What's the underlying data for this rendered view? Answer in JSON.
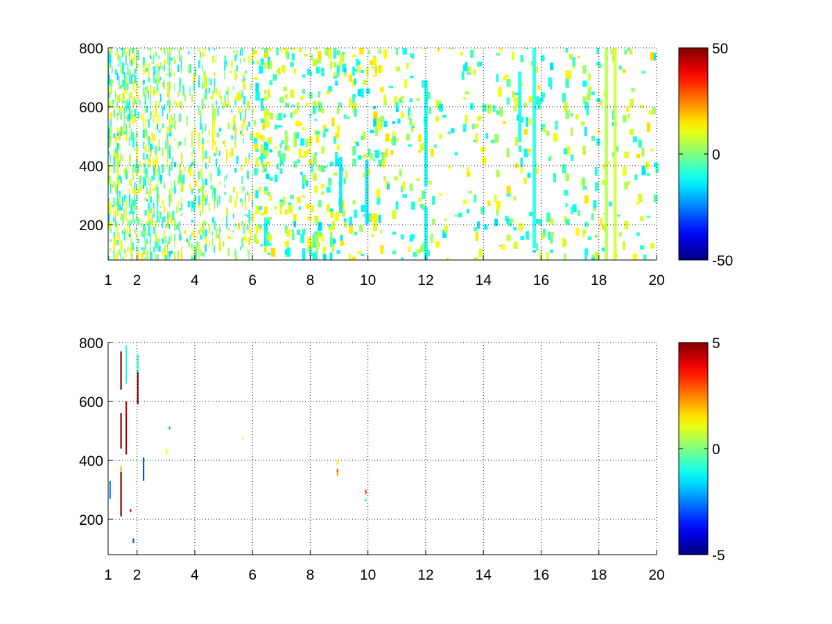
{
  "chart_data": [
    {
      "type": "heatmap",
      "title": "",
      "xlabel": "",
      "ylabel": "",
      "xlim": [
        1,
        20
      ],
      "ylim": [
        80,
        800
      ],
      "xticks": [
        "1",
        "2",
        "4",
        "6",
        "8",
        "10",
        "12",
        "14",
        "16",
        "18",
        "20"
      ],
      "yticks": [
        "200",
        "400",
        "600",
        "800"
      ],
      "grid": true,
      "colormap": "jet",
      "colorbar": {
        "min": -50,
        "max": 50,
        "ticks": [
          "50",
          "0",
          "-50"
        ]
      },
      "description_values": {
        "cell_width_x": 0.13,
        "cell_height_y": 18,
        "value_range": [
          -18,
          18
        ],
        "density_by_x": [
          [
            1,
            0.9
          ],
          [
            2,
            0.75
          ],
          [
            4,
            0.6
          ],
          [
            6,
            0.45
          ],
          [
            8,
            0.32
          ],
          [
            10,
            0.22
          ],
          [
            12,
            0.18
          ],
          [
            14,
            0.15
          ],
          [
            16,
            0.14
          ],
          [
            18,
            0.14
          ],
          [
            20,
            0.12
          ]
        ],
        "columns": [
          {
            "x": 9.0,
            "y0": 240,
            "y1": 430,
            "value": -15
          },
          {
            "x": 9.9,
            "y0": 200,
            "y1": 420,
            "value": -15
          },
          {
            "x": 11.95,
            "y0": 80,
            "y1": 260,
            "value": -13
          },
          {
            "x": 11.95,
            "y0": 330,
            "y1": 690,
            "value": -13
          },
          {
            "x": 15.2,
            "y0": 480,
            "y1": 720,
            "value": -12
          },
          {
            "x": 15.7,
            "y0": 120,
            "y1": 800,
            "value": -10
          },
          {
            "x": 18.2,
            "y0": 80,
            "y1": 800,
            "value": 5
          },
          {
            "x": 18.5,
            "y0": 80,
            "y1": 800,
            "value": 8
          }
        ]
      }
    },
    {
      "type": "heatmap",
      "title": "",
      "xlabel": "",
      "ylabel": "",
      "xlim": [
        1,
        20
      ],
      "ylim": [
        80,
        800
      ],
      "xticks": [
        "1",
        "2",
        "4",
        "6",
        "8",
        "10",
        "12",
        "14",
        "16",
        "18",
        "20"
      ],
      "yticks": [
        "200",
        "400",
        "600",
        "800"
      ],
      "grid": true,
      "colormap": "jet",
      "colorbar": {
        "min": -5,
        "max": 5,
        "ticks": [
          "5",
          "0",
          "-5"
        ]
      },
      "strips": [
        {
          "x": 1.04,
          "y0": 270,
          "y1": 330,
          "value": -2.5
        },
        {
          "x": 1.42,
          "y0": 210,
          "y1": 360,
          "value": 5
        },
        {
          "x": 1.42,
          "y0": 360,
          "y1": 380,
          "value": 2
        },
        {
          "x": 1.42,
          "y0": 440,
          "y1": 560,
          "value": 5
        },
        {
          "x": 1.42,
          "y0": 640,
          "y1": 770,
          "value": 5
        },
        {
          "x": 1.6,
          "y0": 420,
          "y1": 600,
          "value": 4.5
        },
        {
          "x": 1.6,
          "y0": 660,
          "y1": 790,
          "value": -1
        },
        {
          "x": 1.75,
          "y0": 225,
          "y1": 235,
          "value": 4
        },
        {
          "x": 1.85,
          "y0": 120,
          "y1": 135,
          "value": -3
        },
        {
          "x": 2.0,
          "y0": 590,
          "y1": 700,
          "value": 5
        },
        {
          "x": 2.0,
          "y0": 700,
          "y1": 760,
          "value": -1
        },
        {
          "x": 2.2,
          "y0": 330,
          "y1": 410,
          "value": -3
        },
        {
          "x": 3.0,
          "y0": 420,
          "y1": 440,
          "value": 1
        },
        {
          "x": 3.1,
          "y0": 505,
          "y1": 515,
          "value": -2
        },
        {
          "x": 5.65,
          "y0": 470,
          "y1": 478,
          "value": 1
        },
        {
          "x": 8.92,
          "y0": 385,
          "y1": 400,
          "value": 1.5
        },
        {
          "x": 8.92,
          "y0": 360,
          "y1": 372,
          "value": 3
        },
        {
          "x": 8.92,
          "y0": 346,
          "y1": 360,
          "value": 2
        },
        {
          "x": 9.9,
          "y0": 285,
          "y1": 300,
          "value": 3
        },
        {
          "x": 9.9,
          "y0": 260,
          "y1": 270,
          "value": -1
        }
      ]
    }
  ]
}
